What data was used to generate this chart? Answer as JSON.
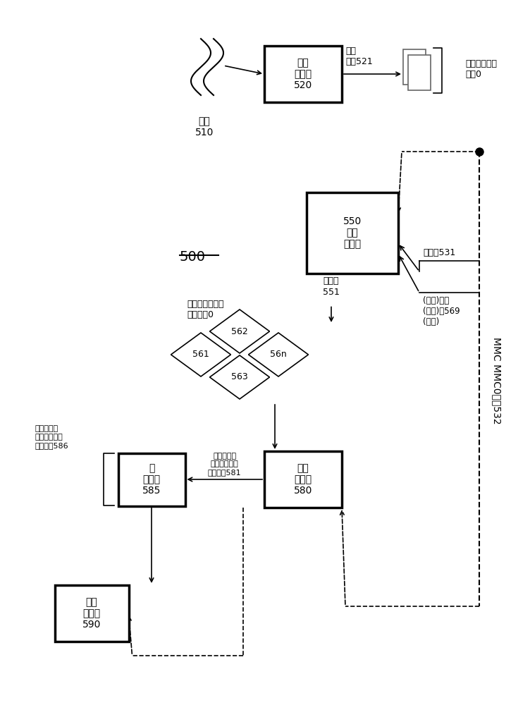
{
  "bg_color": "#ffffff",
  "fig_label": "500",
  "channel_label": "通道\n510",
  "box520_label": "通道\n解码器\n520",
  "coded_data_label": "编码\n数据521",
  "temp_coded_label": "临时编码数据\n区坃0",
  "box550_label": "550\n核心\n解码器",
  "decoded_frame_label": "解码帧\n551",
  "mem_area_label": "解码帧临时内存\n存储区坆0",
  "encoded_frame_label": "编码帧531",
  "multi_ref_label": "(多个)解码\n(参考)帧569\n(多个)",
  "mmc_label": "MMC MMC0信息532",
  "box580_label": "输出\n定序器\n580",
  "box585_label": "帧\n解封器\n585",
  "high_res_label": "较高分辨率\n色度采样格式\n的输出帧586",
  "low_res_label": "较低分辨率\n色度采样格式\n的输出帧581",
  "box590_label": "输出\n目的地\n590",
  "diamonds": [
    "561",
    "562",
    "563",
    "56n"
  ]
}
